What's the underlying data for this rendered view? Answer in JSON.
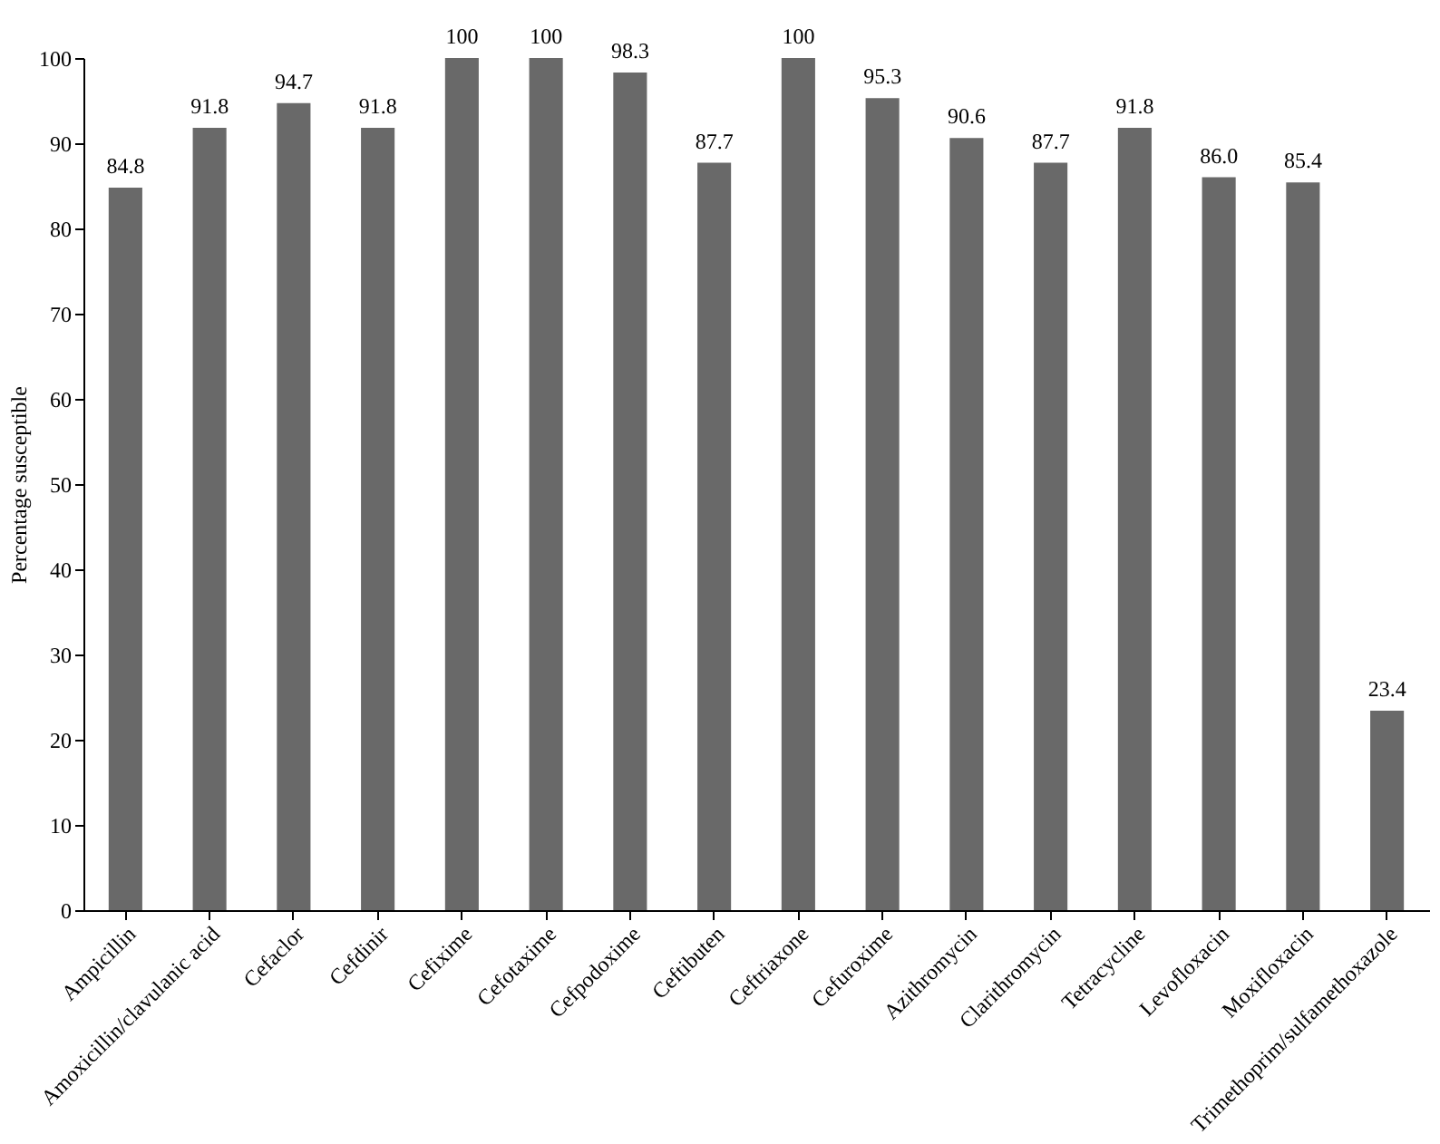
{
  "chart_data": {
    "type": "bar",
    "ylabel": "Percentage susceptible",
    "categories": [
      "Ampicillin",
      "Amoxicillin/clavulanic acid",
      "Cefaclor",
      "Cefdinir",
      "Cefixime",
      "Cefotaxime",
      "Cefpodoxime",
      "Ceftibuten",
      "Ceftriaxone",
      "Cefuroxime",
      "Azithromycin",
      "Clarithromycin",
      "Tetracycline",
      "Levofloxacin",
      "Moxifloxacin",
      "Trimethoprim/sulfamethoxazole"
    ],
    "values": [
      84.8,
      91.8,
      94.7,
      91.8,
      100,
      100,
      98.3,
      87.7,
      100,
      95.3,
      90.6,
      87.7,
      91.8,
      86.0,
      85.4,
      23.4
    ],
    "value_labels": [
      "84.8",
      "91.8",
      "94.7",
      "91.8",
      "100",
      "100",
      "98.3",
      "87.7",
      "100",
      "95.3",
      "90.6",
      "87.7",
      "91.8",
      "86.0",
      "85.4",
      "23.4"
    ],
    "color": "#696969",
    "ylim": [
      0,
      100
    ],
    "yticks": [
      0,
      10,
      20,
      30,
      40,
      50,
      60,
      70,
      80,
      90,
      100
    ],
    "grid": false
  }
}
